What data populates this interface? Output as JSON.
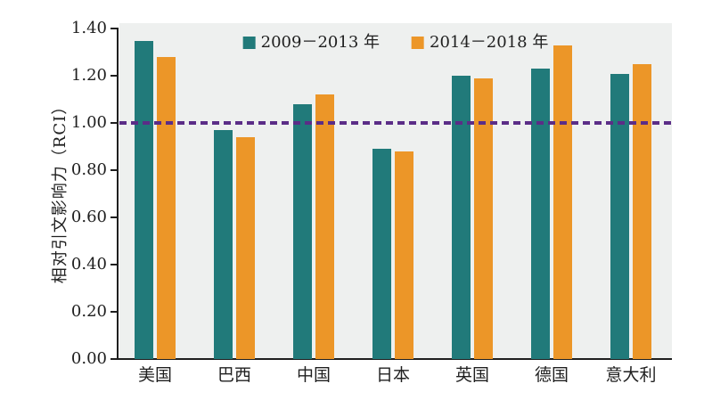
{
  "chart_data": {
    "type": "bar",
    "title": "",
    "ylabel": "相对引文影响力（RCI）",
    "categories": [
      "美国",
      "巴西",
      "中国",
      "日本",
      "英国",
      "德国",
      "意大利"
    ],
    "series": [
      {
        "name": "2009－2013 年",
        "color": "#217a7a",
        "values": [
          1.35,
          0.97,
          1.08,
          0.89,
          1.2,
          1.23,
          1.21
        ]
      },
      {
        "name": "2014－2018 年",
        "color": "#ec9628",
        "values": [
          1.28,
          0.94,
          1.12,
          0.88,
          1.19,
          1.33,
          1.25
        ]
      }
    ],
    "y_ticks": [
      "0.00",
      "0.20",
      "0.40",
      "0.60",
      "0.80",
      "1.00",
      "1.20",
      "1.40"
    ],
    "ylim": [
      0,
      1.4
    ],
    "grid": false,
    "legend_position": "top-center",
    "reference_line": {
      "value": 1.0,
      "color": "#5b2d87",
      "style": "dashed"
    },
    "plot_background": "#eef0ef",
    "axis_color": "#1f1f1f"
  }
}
